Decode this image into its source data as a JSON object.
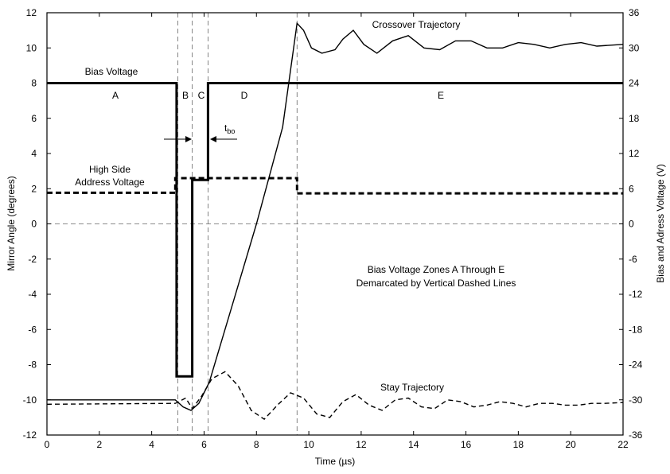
{
  "chart_data": {
    "type": "line",
    "xlabel": "Time (µs)",
    "ylabel_left": "Mirror Angle (degrees)",
    "ylabel_right": "Bias and Adress Voltage (V)",
    "xlim": [
      0,
      22
    ],
    "ylim_left": [
      -12,
      12
    ],
    "ylim_right": [
      -36,
      36
    ],
    "x_ticks": [
      "0",
      "2",
      "4",
      "6",
      "8",
      "10",
      "12",
      "14",
      "16",
      "18",
      "20",
      "22"
    ],
    "y_left_ticks": [
      "12",
      "10",
      "8",
      "6",
      "4",
      "2",
      "0",
      "-2",
      "-4",
      "-6",
      "-8",
      "-10",
      "-12"
    ],
    "y_right_ticks": [
      "36",
      "30",
      "24",
      "18",
      "12",
      "6",
      "0",
      "-6",
      "-12",
      "-18",
      "-24",
      "-30",
      "-36"
    ],
    "zone_boundaries": [
      5.0,
      5.55,
      6.15,
      9.55
    ],
    "zero_line": 0,
    "annotations": {
      "bias_voltage": "Bias Voltage",
      "high_side_line1": "High Side",
      "high_side_line2": "Address Voltage",
      "crossover": "Crossover Trajectory",
      "stay": "Stay Trajectory",
      "zones_line1": "Bias Voltage Zones A Through E",
      "zones_line2": "Demarcated by Vertical Dashed Lines",
      "tbo_main": "t",
      "tbo_sub": "bo",
      "zone_a": "A",
      "zone_b": "B",
      "zone_c": "C",
      "zone_d": "D",
      "zone_e": "E"
    },
    "series": [
      {
        "name": "Bias Voltage",
        "axis": "right",
        "style": "solid-thick",
        "x": [
          0,
          4.95,
          4.95,
          5.55,
          5.55,
          6.15,
          6.15,
          22
        ],
        "y": [
          24,
          24,
          -26,
          -26,
          7.5,
          7.5,
          24,
          24
        ]
      },
      {
        "name": "High Side Address Voltage",
        "axis": "right",
        "style": "dashed-thick",
        "x": [
          0,
          4.9,
          4.9,
          9.55,
          9.55,
          22
        ],
        "y": [
          5.3,
          5.3,
          7.8,
          7.8,
          5.2,
          5.2
        ]
      },
      {
        "name": "Crossover Trajectory",
        "axis": "left",
        "style": "solid",
        "x": [
          0,
          4.9,
          5.2,
          5.5,
          5.8,
          6.2,
          7.0,
          8.0,
          9.0,
          9.55,
          9.8,
          10.1,
          10.5,
          11.0,
          11.3,
          11.7,
          12.1,
          12.6,
          13.2,
          13.8,
          14.4,
          15.0,
          15.6,
          16.2,
          16.8,
          17.4,
          18.0,
          18.6,
          19.2,
          19.8,
          20.4,
          21.0,
          22.0
        ],
        "y": [
          -10.0,
          -10.0,
          -10.4,
          -10.6,
          -10.2,
          -9.0,
          -5.0,
          0.0,
          5.5,
          11.4,
          11.0,
          10.0,
          9.7,
          9.9,
          10.5,
          11.0,
          10.2,
          9.7,
          10.4,
          10.7,
          10.0,
          9.9,
          10.4,
          10.4,
          10.0,
          10.0,
          10.3,
          10.2,
          10.0,
          10.2,
          10.3,
          10.1,
          10.2
        ]
      },
      {
        "name": "Stay Trajectory",
        "axis": "left",
        "style": "dashed",
        "x": [
          0,
          4.9,
          5.3,
          5.55,
          5.9,
          6.3,
          6.8,
          7.3,
          7.8,
          8.3,
          8.8,
          9.3,
          9.8,
          10.3,
          10.8,
          11.3,
          11.8,
          12.3,
          12.8,
          13.3,
          13.8,
          14.3,
          14.8,
          15.3,
          15.8,
          16.3,
          16.8,
          17.3,
          17.8,
          18.3,
          18.8,
          19.3,
          19.8,
          20.3,
          20.8,
          21.3,
          22.0
        ],
        "y": [
          -10.25,
          -10.2,
          -9.9,
          -10.5,
          -9.8,
          -8.8,
          -8.4,
          -9.2,
          -10.6,
          -11.1,
          -10.3,
          -9.6,
          -9.9,
          -10.8,
          -11.0,
          -10.1,
          -9.7,
          -10.3,
          -10.6,
          -10.0,
          -9.9,
          -10.4,
          -10.5,
          -10.0,
          -10.1,
          -10.4,
          -10.3,
          -10.1,
          -10.2,
          -10.4,
          -10.2,
          -10.2,
          -10.3,
          -10.3,
          -10.2,
          -10.2,
          -10.15
        ]
      }
    ]
  }
}
